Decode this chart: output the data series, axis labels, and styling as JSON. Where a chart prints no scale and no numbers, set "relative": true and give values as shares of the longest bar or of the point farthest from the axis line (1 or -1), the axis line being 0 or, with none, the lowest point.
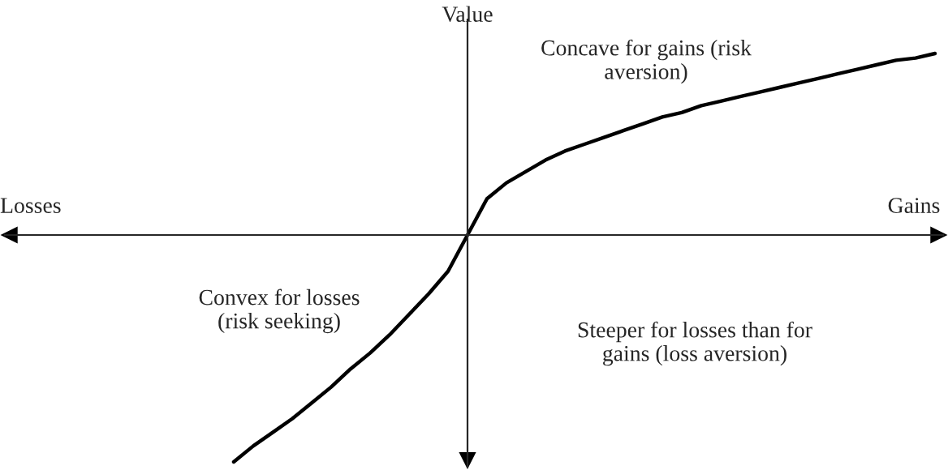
{
  "chart_data": {
    "type": "line",
    "relative": true,
    "ylabel": "Value",
    "categories": [
      null,
      null,
      null,
      null,
      null,
      null,
      null,
      null,
      null,
      null,
      null,
      null,
      null,
      null,
      null,
      null,
      null,
      null,
      null,
      null,
      null,
      null,
      null,
      null,
      null,
      null,
      null,
      null,
      null,
      null,
      null,
      null,
      null,
      null,
      null,
      null,
      null,
      null,
      null,
      null,
      null,
      null,
      null,
      null,
      null,
      null,
      null,
      null,
      null
    ],
    "series": [
      {
        "color": "#000000",
        "values": [
          null,
          null,
          null,
          null,
          null,
          null,
          null,
          null,
          null,
          null,
          null,
          null,
          -1.0,
          -0.93,
          -0.87,
          -0.81,
          -0.74,
          -0.67,
          -0.59,
          -0.52,
          -0.44,
          -0.35,
          -0.26,
          -0.16,
          0,
          0.16,
          0.23,
          0.28,
          0.33,
          0.37,
          0.4,
          0.43,
          0.46,
          0.49,
          0.52,
          0.54,
          0.57,
          0.59,
          0.61,
          0.63,
          0.65,
          0.67,
          0.69,
          0.71,
          0.73,
          0.75,
          0.77,
          0.78,
          0.8
        ]
      }
    ],
    "annotations": [
      "Losses",
      "Gains",
      "Concave for gains (risk\naversion)",
      "Convex for losses\n(risk seeking)",
      "Steeper for losses than for\ngains (loss aversion)"
    ],
    "legend": false
  }
}
